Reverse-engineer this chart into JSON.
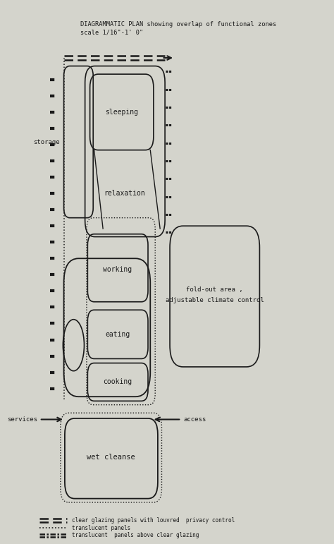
{
  "title_line1": "DIAGRAMMATIC PLAN showing overlap of functional zones",
  "title_line2": "scale 1/16\"-1' 0\"",
  "bg_color": "#d4d4cc",
  "line_color": "#1a1a1a",
  "legend_items": [
    {
      "label": "clear glazing panels with louvred  privacy control",
      "style": "dashed"
    },
    {
      "label": "translucent panels",
      "style": "dotted"
    },
    {
      "label": "translucent  panels above clear glazing",
      "style": "dashdot"
    }
  ]
}
